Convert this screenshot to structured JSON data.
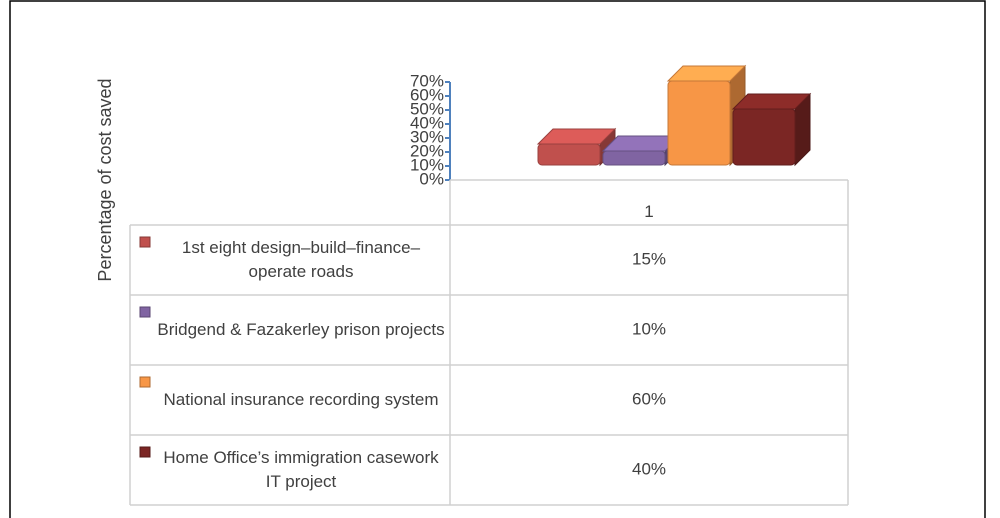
{
  "chart_data": {
    "type": "bar",
    "y_label": "Percentage of cost saved",
    "categories": [
      "1"
    ],
    "series": [
      {
        "name": "1st eight design–build–finance–operate roads",
        "color": "#c0504d",
        "values": [
          15
        ],
        "value_labels": [
          "15%"
        ]
      },
      {
        "name": "Bridgend & Fazakerley prison projects",
        "color": "#8064a2",
        "values": [
          10
        ],
        "value_labels": [
          "10%"
        ]
      },
      {
        "name": "National insurance recording system",
        "color": "#f79646",
        "values": [
          60
        ],
        "value_labels": [
          "60%"
        ]
      },
      {
        "name": "Home Office’s immigration casework IT project",
        "color": "#7b2624",
        "values": [
          40
        ],
        "value_labels": [
          "40%"
        ]
      }
    ],
    "ylim": [
      0,
      70
    ],
    "yticks": [
      {
        "value": 0,
        "label": "0%"
      },
      {
        "value": 10,
        "label": "10%"
      },
      {
        "value": 20,
        "label": "20%"
      },
      {
        "value": 30,
        "label": "30%"
      },
      {
        "value": 40,
        "label": "40%"
      },
      {
        "value": 50,
        "label": "50%"
      },
      {
        "value": 60,
        "label": "60%"
      },
      {
        "value": 70,
        "label": "70%"
      }
    ],
    "data_table": true
  }
}
